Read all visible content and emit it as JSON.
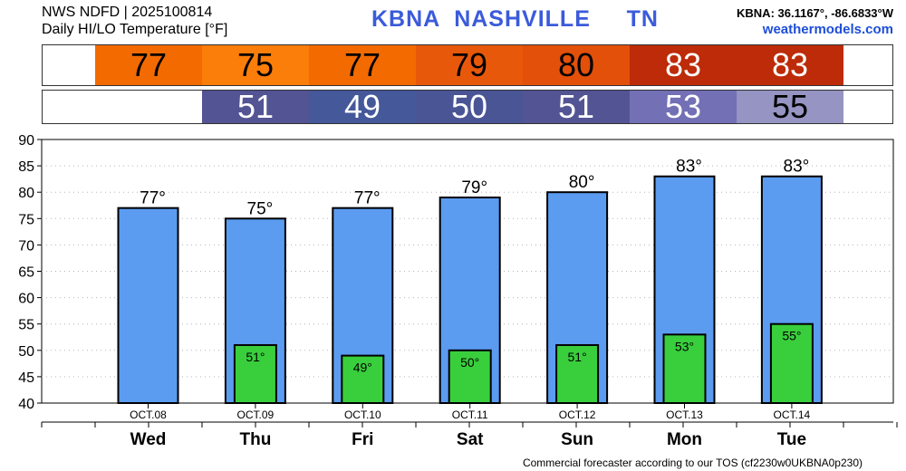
{
  "header": {
    "line1": "NWS NDFD | 2025100814",
    "line2": "Daily HI/LO Temperature [°F]",
    "station": "KBNA",
    "city": "NASHVILLE",
    "state": "TN",
    "coords": "KBNA: 36.1167°, -86.6833°W",
    "site": "weathermodels.com"
  },
  "high_strip": [
    {
      "value": "77",
      "color": "#f26a00",
      "text_color": "#000000"
    },
    {
      "value": "75",
      "color": "#fb7d0a",
      "text_color": "#000000"
    },
    {
      "value": "77",
      "color": "#f26a00",
      "text_color": "#000000"
    },
    {
      "value": "79",
      "color": "#e8580a",
      "text_color": "#000000"
    },
    {
      "value": "80",
      "color": "#e3500a",
      "text_color": "#000000"
    },
    {
      "value": "83",
      "color": "#bd2b08",
      "text_color": "#ffffff"
    },
    {
      "value": "83",
      "color": "#bd2b08",
      "text_color": "#ffffff"
    }
  ],
  "low_strip": [
    {
      "value": "",
      "color": "#ffffff",
      "text_color": "#000000"
    },
    {
      "value": "51",
      "color": "#535494",
      "text_color": "#ffffff"
    },
    {
      "value": "49",
      "color": "#44589a",
      "text_color": "#ffffff"
    },
    {
      "value": "50",
      "color": "#4a5596",
      "text_color": "#ffffff"
    },
    {
      "value": "51",
      "color": "#535494",
      "text_color": "#ffffff"
    },
    {
      "value": "53",
      "color": "#7370b6",
      "text_color": "#ffffff"
    },
    {
      "value": "55",
      "color": "#9594c2",
      "text_color": "#000000"
    }
  ],
  "chart_data": {
    "type": "bar",
    "categories": [
      "OCT.08",
      "OCT.09",
      "OCT.10",
      "OCT.11",
      "OCT.12",
      "OCT.13",
      "OCT.14"
    ],
    "day_labels": [
      "Wed",
      "Thu",
      "Fri",
      "Sat",
      "Sun",
      "Mon",
      "Tue"
    ],
    "series": [
      {
        "values": [
          77,
          75,
          77,
          79,
          80,
          83,
          83
        ],
        "color": "#5b9cf1"
      },
      {
        "values": [
          null,
          51,
          49,
          50,
          51,
          53,
          55
        ],
        "color": "#39cf3c"
      }
    ],
    "value_labels_high": [
      "77°",
      "75°",
      "77°",
      "79°",
      "80°",
      "83°",
      "83°"
    ],
    "value_labels_low": [
      "",
      "51°",
      "49°",
      "50°",
      "51°",
      "53°",
      "55°"
    ],
    "ylim": [
      40,
      90
    ],
    "yticks": [
      "40",
      "45",
      "50",
      "55",
      "60",
      "65",
      "70",
      "75",
      "80",
      "85",
      "90"
    ],
    "grid": true
  },
  "footer": "Commercial forecaster according to our TOS (cf2230w0UKBNA0p230)"
}
